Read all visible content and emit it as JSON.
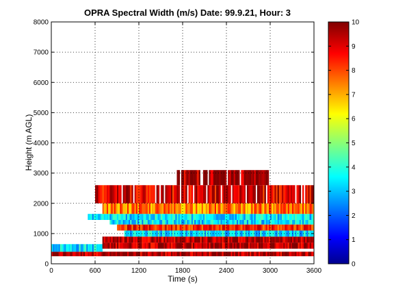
{
  "chart_data": {
    "type": "heatmap",
    "title": "OPRA Spectral Width (m/s)  Date: 99.9.21, Hour: 3",
    "xlabel": "Time (s)",
    "ylabel": "Height (m AGL)",
    "xlim": [
      0,
      3600
    ],
    "ylim": [
      0,
      8000
    ],
    "xticks": [
      "0",
      "600",
      "1200",
      "1800",
      "2400",
      "3000",
      "3600"
    ],
    "yticks": [
      "0",
      "1000",
      "2000",
      "3000",
      "4000",
      "5000",
      "6000",
      "7000",
      "8000"
    ],
    "grid": "dotted",
    "colormap": "jet",
    "colorbar": {
      "range": [
        0,
        10
      ],
      "ticks": [
        "0",
        "1",
        "2",
        "3",
        "4",
        "5",
        "6",
        "7",
        "8",
        "9",
        "10"
      ]
    },
    "value_bands": [
      {
        "height_range": [
          250,
          400
        ],
        "time_range": [
          0,
          3600
        ],
        "approx_value": 9.5
      },
      {
        "height_range": [
          400,
          650
        ],
        "time_range": [
          0,
          700
        ],
        "approx_value": 3.5
      },
      {
        "height_range": [
          500,
          700
        ],
        "time_range": [
          700,
          3600
        ],
        "approx_value": 9.5
      },
      {
        "height_range": [
          700,
          900
        ],
        "time_range": [
          700,
          3600
        ],
        "approx_value": 9.5
      },
      {
        "height_range": [
          900,
          1100
        ],
        "time_range": [
          1000,
          3600
        ],
        "approx_value": 3.5
      },
      {
        "height_range": [
          1100,
          1300
        ],
        "time_range": [
          900,
          3600
        ],
        "approx_value": 8.5
      },
      {
        "height_range": [
          1300,
          1450
        ],
        "time_range": [
          800,
          3600
        ],
        "approx_value": 3.5
      },
      {
        "height_range": [
          1450,
          1650
        ],
        "time_range": [
          500,
          3600
        ],
        "approx_value": 3.5
      },
      {
        "height_range": [
          1650,
          2000
        ],
        "time_range": [
          700,
          3600
        ],
        "approx_value": 7.5
      },
      {
        "height_range": [
          2000,
          2600
        ],
        "time_range": [
          600,
          3600
        ],
        "approx_value": 9.0
      },
      {
        "height_range": [
          2600,
          3100
        ],
        "time_range": [
          1700,
          3000
        ],
        "approx_value": 9.5
      }
    ]
  }
}
